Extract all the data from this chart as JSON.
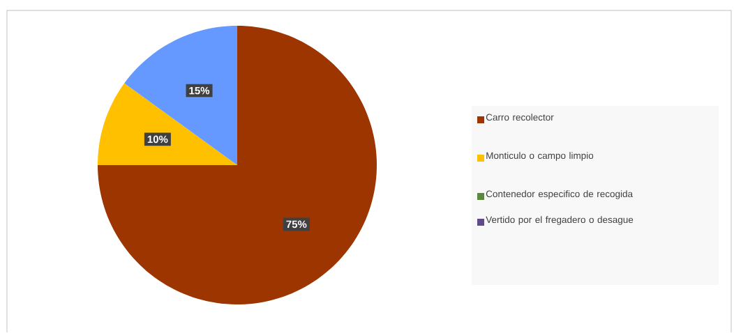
{
  "chart_data": {
    "type": "pie",
    "categories": [
      "Carro recolector",
      "Monticulo o campo  limpio",
      "Contenedor especifico de recogida",
      "Vertido por el fregadero o desague",
      null
    ],
    "values": [
      75,
      10,
      0,
      0,
      15
    ],
    "colors": [
      "#9c3500",
      "#ffc000",
      "#5b8a3a",
      "#5e4a8c",
      "#6699ff"
    ],
    "value_labels": [
      "75%",
      "10%",
      null,
      null,
      "15%"
    ],
    "legend": "right"
  }
}
